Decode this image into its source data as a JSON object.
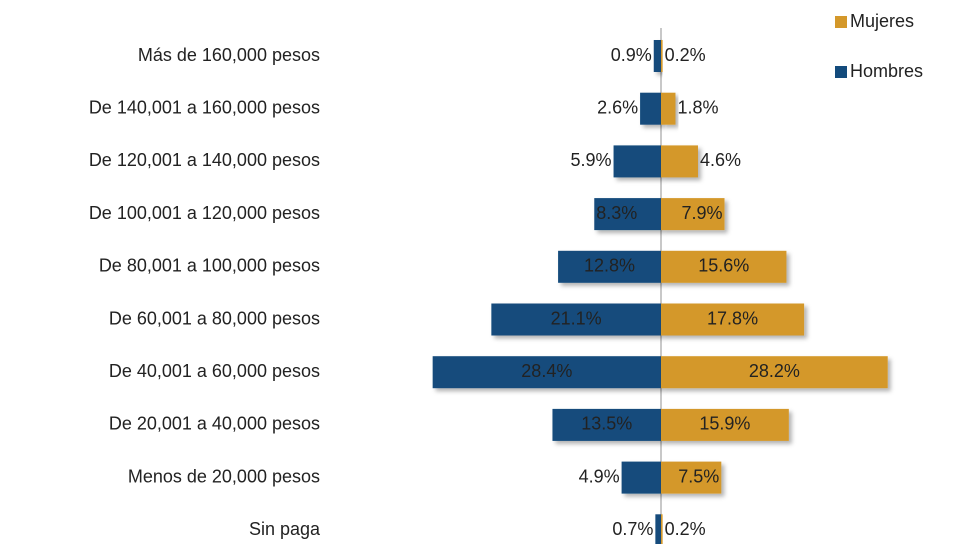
{
  "chart_data": {
    "type": "pyramid",
    "categories": [
      "Más de 160,000 pesos",
      "De 140,001 a 160,000 pesos",
      "De 120,001 a 140,000 pesos",
      "De 100,001 a 120,000 pesos",
      "De 80,001 a 100,000 pesos",
      "De 60,001 a 80,000 pesos",
      "De 40,001 a 60,000 pesos",
      "De 20,001 a 40,000 pesos",
      "Menos de 20,000 pesos",
      "Sin paga"
    ],
    "series": [
      {
        "name": "Hombres",
        "color": "#134b7c",
        "values": [
          0.9,
          2.6,
          5.9,
          8.3,
          12.8,
          21.1,
          28.4,
          13.5,
          4.9,
          0.7
        ],
        "value_labels": [
          "0.9%",
          "2.6%",
          "5.9%",
          "8.3%",
          "12.8%",
          "21.1%",
          "28.4%",
          "13.5%",
          "4.9%",
          "0.7%"
        ]
      },
      {
        "name": "Mujeres",
        "color": "#d4982a",
        "values": [
          0.2,
          1.8,
          4.6,
          7.9,
          15.6,
          17.8,
          28.2,
          15.9,
          7.5,
          0.2
        ],
        "value_labels": [
          "0.2%",
          "1.8%",
          "4.6%",
          "7.9%",
          "15.6%",
          "17.8%",
          "28.2%",
          "15.9%",
          "7.5%",
          "0.2%"
        ]
      }
    ],
    "legend": "top-right"
  }
}
